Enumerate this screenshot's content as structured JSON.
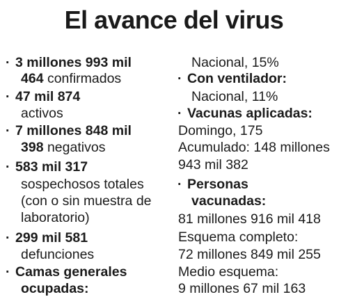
{
  "title": "El avance del virus",
  "left": {
    "i1_bold_a": "3 millones 993 mil",
    "i1_bold_b": "464",
    "i1_rest": " confirmados",
    "i2_bold": "47 mil 874",
    "i2_rest": "activos",
    "i3_bold_a": "7 millones 848 mil",
    "i3_bold_b": "398",
    "i3_rest": " negativos",
    "i4_bold": "583 mil 317",
    "i4_l2": "sospechosos totales",
    "i4_l3": "(con o sin muestra de",
    "i4_l4": "laboratorio)",
    "i5_bold": "299 mil 581",
    "i5_rest": "defunciones",
    "i6_bold_a": "Camas generales",
    "i6_bold_b": "ocupadas:"
  },
  "right": {
    "r1": "Nacional, 15%",
    "h2": "Con ventilador:",
    "r2": "Nacional, 11%",
    "h3": "Vacunas aplicadas:",
    "r3a": "Domingo, 175",
    "r3b": "Acumulado: 148 millones",
    "r3c": "943 mil 382",
    "h4a": "Personas",
    "h4b": "vacunadas:",
    "r4a": "81 millones 916 mil 418",
    "r4b": "Esquema completo:",
    "r4c": "72 millones 849 mil 255",
    "r4d": "Medio esquema:",
    "r4e": "9 millones 67 mil 163"
  }
}
